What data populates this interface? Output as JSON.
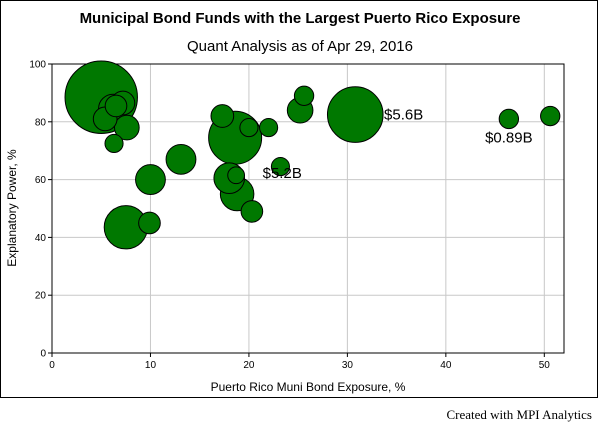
{
  "header": {
    "title": "Municipal Bond Funds with the Largest Puerto Rico Exposure",
    "subtitle": "Quant Analysis as of Apr 29, 2016"
  },
  "footer": {
    "credit": "Created with MPI Analytics"
  },
  "colors": {
    "bubble_fill": "#007800",
    "bubble_stroke": "#000000",
    "grid": "#c8c8c8"
  },
  "chart_data": {
    "type": "scatter",
    "xlabel": "Puerto Rico Muni Bond Exposure, %",
    "ylabel": "Explanatory Power, %",
    "xlim": [
      0,
      52
    ],
    "ylim": [
      0,
      100
    ],
    "x_ticks": [
      0,
      10,
      20,
      30,
      40,
      50
    ],
    "y_ticks": [
      0,
      20,
      40,
      60,
      80,
      100
    ],
    "grid": true,
    "points": [
      {
        "x": 5.0,
        "y": 88.5,
        "size": 5.6
      },
      {
        "x": 5.4,
        "y": 81.0,
        "size": 0.6
      },
      {
        "x": 6.2,
        "y": 84.5,
        "size": 0.9
      },
      {
        "x": 6.5,
        "y": 85.5,
        "size": 0.5
      },
      {
        "x": 7.2,
        "y": 86.5,
        "size": 0.6
      },
      {
        "x": 6.3,
        "y": 72.5,
        "size": 0.35
      },
      {
        "x": 7.6,
        "y": 78.0,
        "size": 0.65
      },
      {
        "x": 10.0,
        "y": 60.0,
        "size": 0.95
      },
      {
        "x": 7.5,
        "y": 43.5,
        "size": 2.0
      },
      {
        "x": 9.9,
        "y": 45.0,
        "size": 0.5
      },
      {
        "x": 13.1,
        "y": 67.0,
        "size": 0.95
      },
      {
        "x": 17.3,
        "y": 82.0,
        "size": 0.55
      },
      {
        "x": 18.0,
        "y": 60.5,
        "size": 1.0
      },
      {
        "x": 18.7,
        "y": 61.5,
        "size": 0.3
      },
      {
        "x": 18.8,
        "y": 55.0,
        "size": 1.2
      },
      {
        "x": 20.3,
        "y": 49.0,
        "size": 0.5
      },
      {
        "x": 18.6,
        "y": 74.5,
        "size": 3.0,
        "label": "$5.2B"
      },
      {
        "x": 20.0,
        "y": 78.0,
        "size": 0.35
      },
      {
        "x": 22.0,
        "y": 78.0,
        "size": 0.35
      },
      {
        "x": 23.2,
        "y": 64.5,
        "size": 0.35
      },
      {
        "x": 25.6,
        "y": 89.0,
        "size": 0.4
      },
      {
        "x": 25.2,
        "y": 84.0,
        "size": 0.7
      },
      {
        "x": 30.8,
        "y": 82.5,
        "size": 3.3,
        "label": "$5.6B"
      },
      {
        "x": 46.4,
        "y": 81.0,
        "size": 0.4,
        "label": "$0.89B"
      },
      {
        "x": 50.6,
        "y": 82.0,
        "size": 0.4
      }
    ]
  }
}
